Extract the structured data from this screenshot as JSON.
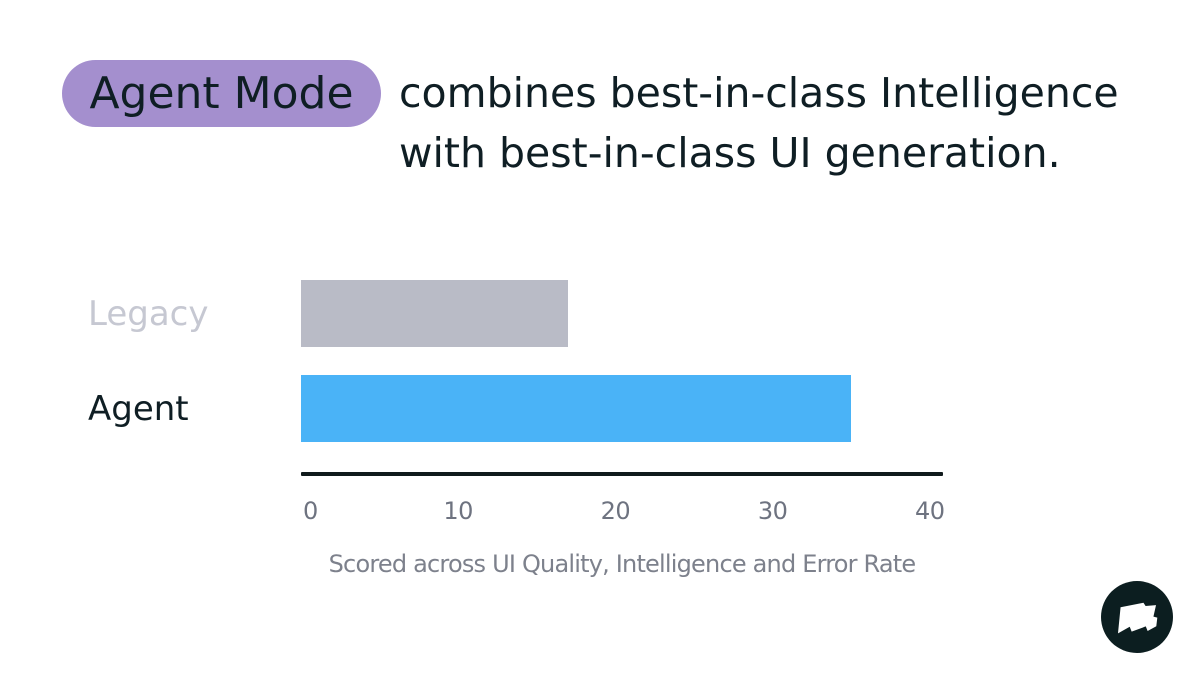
{
  "headline": {
    "badge": "Agent Mode",
    "line1": "combines best-in-class Intelligence",
    "line2": "with best-in-class UI generation.",
    "badge_color": "#a48fce",
    "text_color": "#0f1e24"
  },
  "chart_data": {
    "type": "bar",
    "orientation": "horizontal",
    "categories": [
      "Legacy",
      "Agent"
    ],
    "values": [
      17,
      35
    ],
    "bar_colors": [
      "#b9bbc6",
      "#4ab3f7"
    ],
    "label_colors": [
      "#c6c8d2",
      "#0f1e24"
    ],
    "xticks": [
      0,
      10,
      20,
      30,
      40
    ],
    "xlim": [
      0,
      40
    ],
    "tick_color": "#6e7380",
    "axis_color": "#101a1c",
    "caption": "Scored across UI Quality, Intelligence and Error Rate",
    "caption_color": "#7d818c",
    "grid": false,
    "legend": false
  },
  "logo": {
    "icon": "flag-logo",
    "background": "#0c1e20",
    "foreground": "#ffffff"
  }
}
